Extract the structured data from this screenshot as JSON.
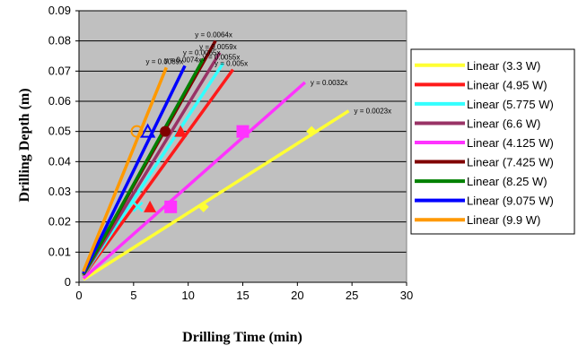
{
  "chart_data": {
    "type": "scatter",
    "xlabel": "Drilling Time (min)",
    "ylabel": "Drilling Depth (m)",
    "xlim": [
      0,
      30
    ],
    "ylim": [
      0,
      0.09
    ],
    "x_ticks": [
      "0",
      "5",
      "10",
      "15",
      "20",
      "25",
      "30"
    ],
    "y_ticks": [
      "0",
      "0.01",
      "0.02",
      "0.03",
      "0.04",
      "0.05",
      "0.06",
      "0.07",
      "0.08",
      "0.09"
    ],
    "grid": true,
    "plot_background": "#c0c0c0",
    "legend_position": "right",
    "series": [
      {
        "name": "Linear (3.3 W)",
        "color": "#ffff33",
        "slope": 0.0023,
        "equation": "y = 0.0023x",
        "line_x": [
          0.4,
          24.7
        ],
        "marker": "diamond",
        "points": [
          {
            "x": 11.4,
            "y": 0.025
          },
          {
            "x": 21.3,
            "y": 0.05
          }
        ]
      },
      {
        "name": "Linear (4.95 W)",
        "color": "#ff1a1a",
        "slope": 0.005,
        "equation": "y = 0.005x",
        "line_x": [
          0.4,
          14.1
        ],
        "marker": "triangle",
        "points": [
          {
            "x": 6.5,
            "y": 0.025
          },
          {
            "x": 9.3,
            "y": 0.05
          }
        ]
      },
      {
        "name": "Linear (5.775 W)",
        "color": "#33ffff",
        "slope": 0.0055,
        "equation": "y = 0.0055x",
        "line_x": [
          0.4,
          13.2
        ],
        "marker": "x",
        "points": [
          {
            "x": 5.4,
            "y": 0.025
          }
        ]
      },
      {
        "name": "Linear (6.6 W)",
        "color": "#993366",
        "slope": 0.0059,
        "equation": "y = 0.0059x",
        "line_x": [
          0.4,
          12.9
        ],
        "marker": "star",
        "points": []
      },
      {
        "name": "Linear (4.125 W)",
        "color": "#ff33ff",
        "slope": 0.0032,
        "equation": "y = 0.0032x",
        "line_x": [
          0.4,
          20.7
        ],
        "marker": "square",
        "points": [
          {
            "x": 8.4,
            "y": 0.025
          },
          {
            "x": 15.0,
            "y": 0.05
          }
        ]
      },
      {
        "name": "Linear (7.425 W)",
        "color": "#800000",
        "slope": 0.0064,
        "equation": "y = 0.0064x",
        "line_x": [
          0.4,
          12.5
        ],
        "marker": "circle",
        "points": [
          {
            "x": 7.9,
            "y": 0.05
          }
        ]
      },
      {
        "name": "Linear (8.25 W)",
        "color": "#008000",
        "slope": 0.0065,
        "equation": "y = 0.0065x",
        "line_x": [
          0.4,
          11.4
        ],
        "marker": "plus",
        "points": []
      },
      {
        "name": "Linear (9.075 W)",
        "color": "#0000ff",
        "slope": 0.0074,
        "equation": "y = 0.0074x",
        "line_x": [
          0.4,
          9.7
        ],
        "marker": "triangle-open",
        "points": [
          {
            "x": 6.3,
            "y": 0.05
          }
        ]
      },
      {
        "name": "Linear (9.9 W)",
        "color": "#ff9900",
        "slope": 0.0089,
        "equation": "y = 0.0089x",
        "line_x": [
          0.4,
          8.0
        ],
        "marker": "circle-open",
        "points": [
          {
            "x": 5.3,
            "y": 0.05
          }
        ]
      }
    ]
  }
}
